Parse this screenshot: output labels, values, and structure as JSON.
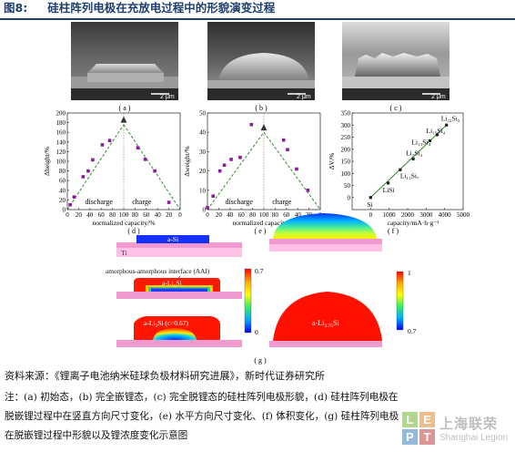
{
  "figure": {
    "label": "图8:",
    "title": "硅柱阵列电极在充放电过程中的形貌演变过程"
  },
  "sem_panels": [
    {
      "label": "( a )",
      "scale": "2 μm"
    },
    {
      "label": "( b )",
      "scale": "2 μm"
    },
    {
      "label": "( c )",
      "scale": "2 μm"
    }
  ],
  "chart_data": [
    {
      "type": "scatter",
      "panel": "(d)",
      "xlabel": "normalized capacity/%",
      "ylabel": "Δheight/%",
      "xticks": [
        "0",
        "20",
        "40",
        "60",
        "80",
        "100",
        "80",
        "60",
        "40",
        "20",
        "0"
      ],
      "yticks": [
        0,
        20,
        40,
        60,
        80,
        100,
        120,
        140,
        160,
        180,
        200
      ],
      "ylim": [
        0,
        200
      ],
      "regions": [
        "discharge",
        "charge"
      ],
      "discharge": {
        "x": [
          5,
          12,
          28,
          37,
          45,
          62,
          75
        ],
        "y": [
          10,
          26,
          68,
          80,
          103,
          134,
          143
        ]
      },
      "charge_points": {
        "x": [
          75,
          62,
          45,
          20
        ],
        "y": [
          128,
          104,
          80,
          15
        ]
      },
      "peak": {
        "x": 100,
        "y": 176
      },
      "trend_lines": "dashed"
    },
    {
      "type": "scatter",
      "panel": "(e)",
      "xlabel": "normalized capacity/%",
      "ylabel": "Δweight/%",
      "xticks": [
        "0",
        "20",
        "40",
        "60",
        "80",
        "100",
        "80",
        "60",
        "40",
        "20",
        "0"
      ],
      "yticks": [
        0,
        10,
        20,
        30,
        40,
        50
      ],
      "ylim": [
        0,
        50
      ],
      "regions": [
        "discharge",
        "charge"
      ],
      "discharge": {
        "x": [
          0,
          10,
          22,
          30,
          42,
          58,
          78
        ],
        "y": [
          1,
          7,
          20,
          23,
          26,
          27,
          44
        ]
      },
      "charge_points": {
        "x": [
          65,
          58,
          42,
          22
        ],
        "y": [
          36,
          31,
          21,
          10
        ]
      },
      "peak": {
        "x": 100,
        "y": 40
      },
      "trend_lines": "dashed"
    },
    {
      "type": "line",
      "panel": "(f)",
      "xlabel": "capacity/mA·h·g⁻¹",
      "ylabel": "ΔV/%",
      "xlim": [
        -1000,
        5000
      ],
      "ylim": [
        -50,
        350
      ],
      "xticks": [
        0,
        1000,
        2000,
        3000,
        4000,
        5000
      ],
      "yticks": [
        0,
        50,
        100,
        150,
        200,
        250,
        300,
        350
      ],
      "points": [
        {
          "x": 0,
          "y": 0,
          "label": "Si"
        },
        {
          "x": 950,
          "y": 60,
          "label": "LiSi"
        },
        {
          "x": 1600,
          "y": 115,
          "label": "Li₁₂Si₇"
        },
        {
          "x": 2300,
          "y": 160,
          "label": "Li₇Si₃"
        },
        {
          "x": 3200,
          "y": 235,
          "label": "Li₁₃Si₄"
        },
        {
          "x": 3600,
          "y": 260,
          "label": "Li₁₅Si₄"
        },
        {
          "x": 4100,
          "y": 300,
          "label": "Li₂₂Si₅"
        }
      ]
    }
  ],
  "plot_labels": [
    "( d )",
    "( e )",
    "( f )"
  ],
  "fem": {
    "label": "( g )",
    "layers": {
      "si": "a-Si",
      "ti": "Ti",
      "aai": "amorphous-amorphous interface (AAI)",
      "lixsi": "a-Li",
      "lixsi_sub": "x",
      "lixsi_tail": "Si",
      "li2si": "a-Li",
      "li2si_sub": "2",
      "li2si_tail": "Si (c=0.67)",
      "li375": "a-Li",
      "li375_sub": "3.75",
      "li375_tail": "Si"
    },
    "colorbar_left": {
      "max": "0.7",
      "min": "0"
    },
    "colorbar_right": {
      "max": "1",
      "min": "0.7"
    }
  },
  "source": "资料来源：《锂离子电池纳米硅球负极材料研究进展》，新时代证券研究所",
  "notes": [
    "注：(a) 初始态，(b) 完全嵌锂态，(c) 完全脱锂态的硅柱阵列电极形貌，(d) 硅柱阵列电极在",
    "脱嵌锂过程中在竖直方向尺寸变化，(e) 水平方向尺寸变化、(f) 体积变化，(g) 硅柱阵列电极",
    "在脱嵌锂过程中形貌以及锂浓度变化示意图"
  ],
  "logo": {
    "letters": [
      "L",
      "E",
      "P",
      "T"
    ],
    "cn": "上海联荣",
    "en": "Shanghai Legion"
  }
}
